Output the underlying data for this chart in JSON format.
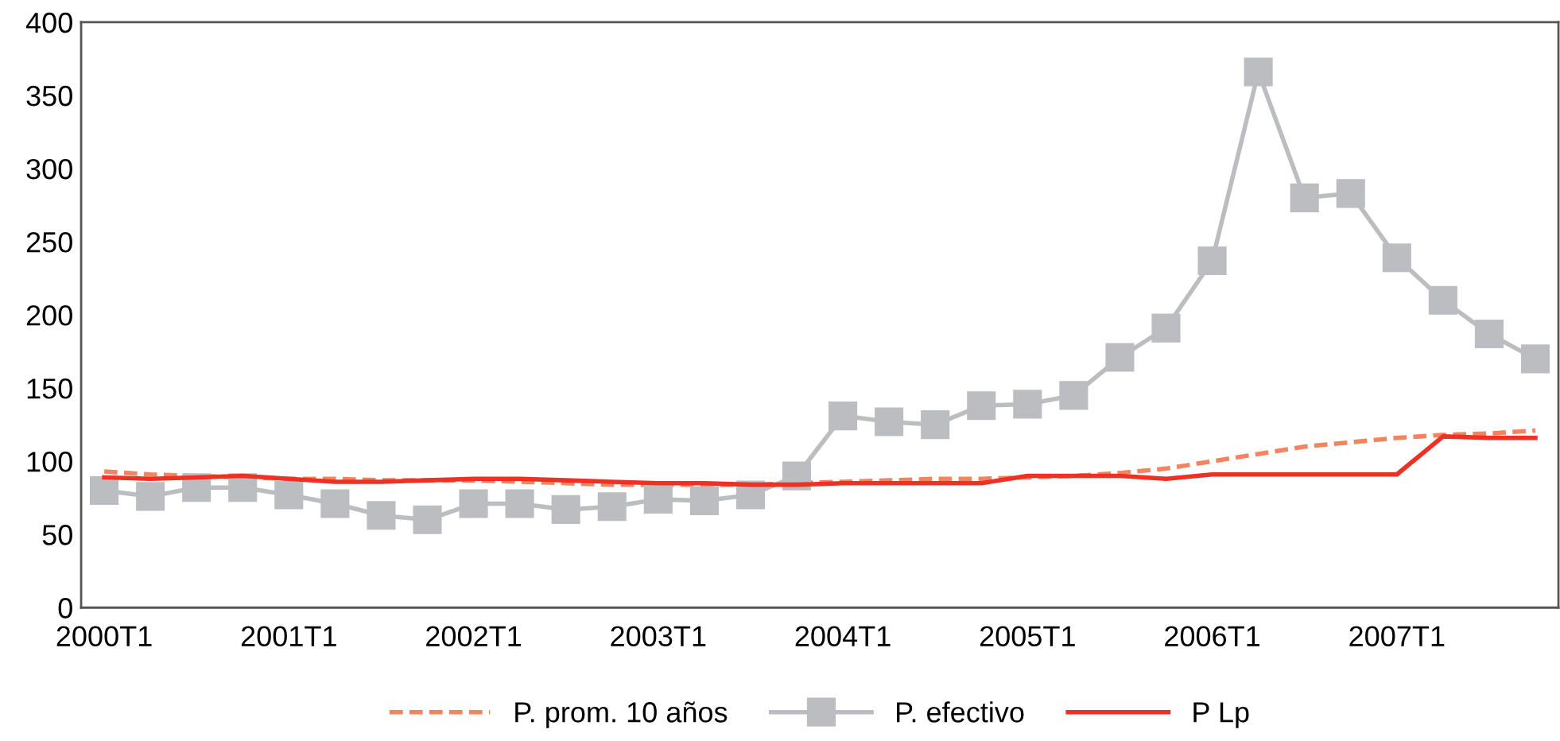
{
  "chart_data": {
    "type": "line",
    "categories": [
      "2000T1",
      null,
      null,
      null,
      "2001T1",
      null,
      null,
      null,
      "2002T1",
      null,
      null,
      null,
      "2003T1",
      null,
      null,
      null,
      "2004T1",
      null,
      null,
      null,
      "2005T1",
      null,
      null,
      null,
      "2006T1",
      null,
      null,
      null,
      "2007T1",
      null,
      null,
      null
    ],
    "series": [
      {
        "name": "P. prom. 10 años",
        "color": "#f4845f",
        "line_style": "dashed",
        "marker": "none",
        "values": [
          93,
          91,
          90,
          89,
          88,
          88,
          87,
          87,
          87,
          86,
          85,
          84,
          84,
          84,
          84,
          85,
          86,
          87,
          88,
          88,
          89,
          90,
          92,
          95,
          100,
          105,
          110,
          113,
          116,
          118,
          119,
          121
        ]
      },
      {
        "name": "P. efectivo",
        "color": "#bcbdc0",
        "line_style": "solid",
        "marker": "square",
        "values": [
          80,
          76,
          82,
          82,
          77,
          71,
          63,
          60,
          71,
          71,
          67,
          69,
          74,
          73,
          77,
          90,
          131,
          127,
          125,
          138,
          139,
          145,
          171,
          191,
          237,
          366,
          280,
          283,
          239,
          210,
          187,
          170
        ]
      },
      {
        "name": "P Lp",
        "color": "#ee3124",
        "line_style": "solid",
        "marker": "none",
        "values": [
          89,
          88,
          89,
          90,
          88,
          86,
          86,
          87,
          88,
          88,
          87,
          86,
          85,
          85,
          84,
          84,
          85,
          85,
          85,
          85,
          90,
          90,
          90,
          88,
          91,
          91,
          91,
          91,
          91,
          117,
          116,
          116
        ]
      }
    ],
    "ylim": [
      0,
      400
    ],
    "yticks": [
      0,
      50,
      100,
      150,
      200,
      250,
      300,
      350,
      400
    ],
    "grid": false,
    "legend": "bottom"
  }
}
